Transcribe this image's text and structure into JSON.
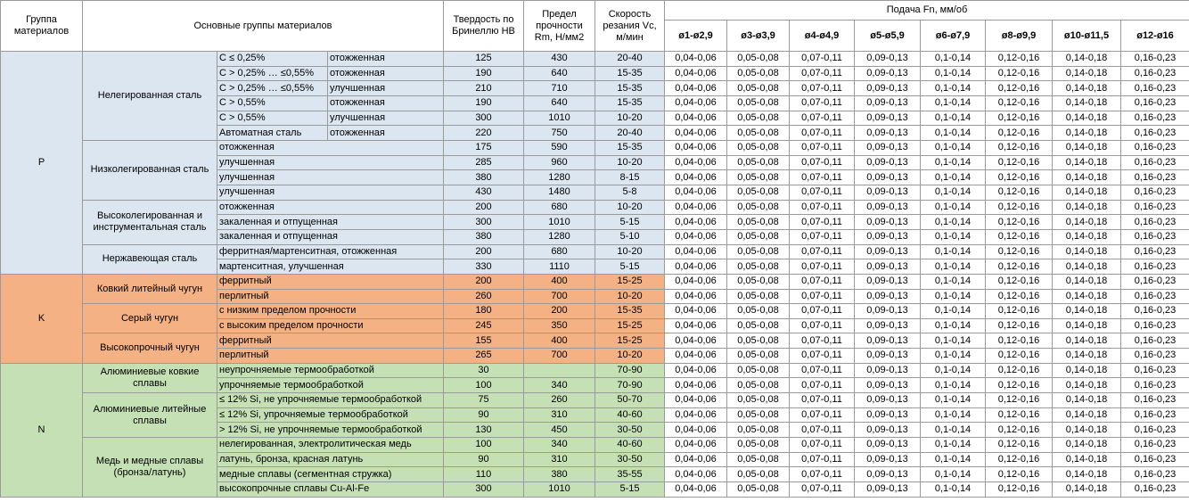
{
  "header": {
    "group": "Группа материалов",
    "main_groups": "Основные группы материалов",
    "hardness": "Твердость по Бринеллю HB",
    "strength": "Предел прочности Rm, Н/мм2",
    "speed": "Скорость резания Vc, м/мин",
    "feed": "Подача Fn, мм/об",
    "diameters": [
      "ø1-ø2,9",
      "ø3-ø3,9",
      "ø4-ø4,9",
      "ø5-ø5,9",
      "ø6-ø7,9",
      "ø8-ø9,9",
      "ø10-ø11,5",
      "ø12-ø16"
    ]
  },
  "groups": [
    {
      "name": "P",
      "subgroups": [
        {
          "name": "Нелегированная сталь",
          "rows": [
            {
              "material": [
                "C ≤ 0,25%",
                "отожженная"
              ],
              "hb": "125",
              "rm": "430",
              "vc": "20-40",
              "feed": [
                "0,04-0,06",
                "0,05-0,08",
                "0,07-0,11",
                "0,09-0,13",
                "0,1-0,14",
                "0,12-0,16",
                "0,14-0,18",
                "0,16-0,23"
              ]
            },
            {
              "material": [
                "C > 0,25% … ≤0,55%",
                "отожженная"
              ],
              "hb": "190",
              "rm": "640",
              "vc": "15-35",
              "feed": [
                "0,04-0,06",
                "0,05-0,08",
                "0,07-0,11",
                "0,09-0,13",
                "0,1-0,14",
                "0,12-0,16",
                "0,14-0,18",
                "0,16-0,23"
              ]
            },
            {
              "material": [
                "C > 0,25% … ≤0,55%",
                "улучшенная"
              ],
              "hb": "210",
              "rm": "710",
              "vc": "15-35",
              "feed": [
                "0,04-0,06",
                "0,05-0,08",
                "0,07-0,11",
                "0,09-0,13",
                "0,1-0,14",
                "0,12-0,16",
                "0,14-0,18",
                "0,16-0,23"
              ]
            },
            {
              "material": [
                "C > 0,55%",
                "отожженная"
              ],
              "hb": "190",
              "rm": "640",
              "vc": "15-35",
              "feed": [
                "0,04-0,06",
                "0,05-0,08",
                "0,07-0,11",
                "0,09-0,13",
                "0,1-0,14",
                "0,12-0,16",
                "0,14-0,18",
                "0,16-0,23"
              ]
            },
            {
              "material": [
                "C > 0,55%",
                "улучшенная"
              ],
              "hb": "300",
              "rm": "1010",
              "vc": "10-20",
              "feed": [
                "0,04-0,06",
                "0,05-0,08",
                "0,07-0,11",
                "0,09-0,13",
                "0,1-0,14",
                "0,12-0,16",
                "0,14-0,18",
                "0,16-0,23"
              ]
            },
            {
              "material": [
                "Автоматная сталь",
                "отожженная"
              ],
              "hb": "220",
              "rm": "750",
              "vc": "20-40",
              "feed": [
                "0,04-0,06",
                "0,05-0,08",
                "0,07-0,11",
                "0,09-0,13",
                "0,1-0,14",
                "0,12-0,16",
                "0,14-0,18",
                "0,16-0,23"
              ]
            }
          ]
        },
        {
          "name": "Низколегированная сталь",
          "rows": [
            {
              "material": [
                "отожженная"
              ],
              "hb": "175",
              "rm": "590",
              "vc": "15-35",
              "feed": [
                "0,04-0,06",
                "0,05-0,08",
                "0,07-0,11",
                "0,09-0,13",
                "0,1-0,14",
                "0,12-0,16",
                "0,14-0,18",
                "0,16-0,23"
              ]
            },
            {
              "material": [
                "улучшенная"
              ],
              "hb": "285",
              "rm": "960",
              "vc": "10-20",
              "feed": [
                "0,04-0,06",
                "0,05-0,08",
                "0,07-0,11",
                "0,09-0,13",
                "0,1-0,14",
                "0,12-0,16",
                "0,14-0,18",
                "0,16-0,23"
              ]
            },
            {
              "material": [
                "улучшенная"
              ],
              "hb": "380",
              "rm": "1280",
              "vc": "8-15",
              "feed": [
                "0,04-0,06",
                "0,05-0,08",
                "0,07-0,11",
                "0,09-0,13",
                "0,1-0,14",
                "0,12-0,16",
                "0,14-0,18",
                "0,16-0,23"
              ]
            },
            {
              "material": [
                "улучшенная"
              ],
              "hb": "430",
              "rm": "1480",
              "vc": "5-8",
              "feed": [
                "0,04-0,06",
                "0,05-0,08",
                "0,07-0,11",
                "0,09-0,13",
                "0,1-0,14",
                "0,12-0,16",
                "0,14-0,18",
                "0,16-0,23"
              ]
            }
          ]
        },
        {
          "name": "Высоколегированная и инструментальная сталь",
          "rows": [
            {
              "material": [
                "отожженная"
              ],
              "hb": "200",
              "rm": "680",
              "vc": "10-20",
              "feed": [
                "0,04-0,06",
                "0,05-0,08",
                "0,07-0,11",
                "0,09-0,13",
                "0,1-0,14",
                "0,12-0,16",
                "0,14-0,18",
                "0,16-0,23"
              ]
            },
            {
              "material": [
                "закаленная и отпущенная"
              ],
              "hb": "300",
              "rm": "1010",
              "vc": "5-15",
              "feed": [
                "0,04-0,06",
                "0,05-0,08",
                "0,07-0,11",
                "0,09-0,13",
                "0,1-0,14",
                "0,12-0,16",
                "0,14-0,18",
                "0,16-0,23"
              ]
            },
            {
              "material": [
                "закаленная и отпущенная"
              ],
              "hb": "380",
              "rm": "1280",
              "vc": "5-10",
              "feed": [
                "0,04-0,06",
                "0,05-0,08",
                "0,07-0,11",
                "0,09-0,13",
                "0,1-0,14",
                "0,12-0,16",
                "0,14-0,18",
                "0,16-0,23"
              ]
            }
          ]
        },
        {
          "name": "Нержавеющая сталь",
          "rows": [
            {
              "material": [
                "ферритная/мартенситная, отожженная"
              ],
              "hb": "200",
              "rm": "680",
              "vc": "10-20",
              "feed": [
                "0,04-0,06",
                "0,05-0,08",
                "0,07-0,11",
                "0,09-0,13",
                "0,1-0,14",
                "0,12-0,16",
                "0,14-0,18",
                "0,16-0,23"
              ]
            },
            {
              "material": [
                "мартенситная, улучшенная"
              ],
              "hb": "330",
              "rm": "1110",
              "vc": "5-15",
              "feed": [
                "0,04-0,06",
                "0,05-0,08",
                "0,07-0,11",
                "0,09-0,13",
                "0,1-0,14",
                "0,12-0,16",
                "0,14-0,18",
                "0,16-0,23"
              ]
            }
          ]
        }
      ]
    },
    {
      "name": "K",
      "subgroups": [
        {
          "name": "Ковкий литейный чугун",
          "rows": [
            {
              "material": [
                "ферритный"
              ],
              "hb": "200",
              "rm": "400",
              "vc": "15-25",
              "feed": [
                "0,04-0,06",
                "0,05-0,08",
                "0,07-0,11",
                "0,09-0,13",
                "0,1-0,14",
                "0,12-0,16",
                "0,14-0,18",
                "0,16-0,23"
              ]
            },
            {
              "material": [
                "перлитный"
              ],
              "hb": "260",
              "rm": "700",
              "vc": "10-20",
              "feed": [
                "0,04-0,06",
                "0,05-0,08",
                "0,07-0,11",
                "0,09-0,13",
                "0,1-0,14",
                "0,12-0,16",
                "0,14-0,18",
                "0,16-0,23"
              ]
            }
          ]
        },
        {
          "name": "Серый чугун",
          "rows": [
            {
              "material": [
                "с низким пределом прочности"
              ],
              "hb": "180",
              "rm": "200",
              "vc": "15-35",
              "feed": [
                "0,04-0,06",
                "0,05-0,08",
                "0,07-0,11",
                "0,09-0,13",
                "0,1-0,14",
                "0,12-0,16",
                "0,14-0,18",
                "0,16-0,23"
              ]
            },
            {
              "material": [
                "с высоким пределом прочности"
              ],
              "hb": "245",
              "rm": "350",
              "vc": "15-25",
              "feed": [
                "0,04-0,06",
                "0,05-0,08",
                "0,07-0,11",
                "0,09-0,13",
                "0,1-0,14",
                "0,12-0,16",
                "0,14-0,18",
                "0,16-0,23"
              ]
            }
          ]
        },
        {
          "name": "Высокопрочный чугун",
          "rows": [
            {
              "material": [
                "ферритный"
              ],
              "hb": "155",
              "rm": "400",
              "vc": "15-25",
              "feed": [
                "0,04-0,06",
                "0,05-0,08",
                "0,07-0,11",
                "0,09-0,13",
                "0,1-0,14",
                "0,12-0,16",
                "0,14-0,18",
                "0,16-0,23"
              ]
            },
            {
              "material": [
                "перлитный"
              ],
              "hb": "265",
              "rm": "700",
              "vc": "10-20",
              "feed": [
                "0,04-0,06",
                "0,05-0,08",
                "0,07-0,11",
                "0,09-0,13",
                "0,1-0,14",
                "0,12-0,16",
                "0,14-0,18",
                "0,16-0,23"
              ]
            }
          ]
        }
      ]
    },
    {
      "name": "N",
      "subgroups": [
        {
          "name": "Алюминиевые ковкие сплавы",
          "rows": [
            {
              "material": [
                "неупрочняемые термообработкой"
              ],
              "hb": "30",
              "vc": "70-90",
              "feed": [
                "0,04-0,06",
                "0,05-0,08",
                "0,07-0,11",
                "0,09-0,13",
                "0,1-0,14",
                "0,12-0,16",
                "0,14-0,18",
                "0,16-0,23"
              ]
            },
            {
              "material": [
                "упрочняемые термообработкой"
              ],
              "hb": "100",
              "rm": "340",
              "vc": "70-90",
              "feed": [
                "0,04-0,06",
                "0,05-0,08",
                "0,07-0,11",
                "0,09-0,13",
                "0,1-0,14",
                "0,12-0,16",
                "0,14-0,18",
                "0,16-0,23"
              ]
            }
          ]
        },
        {
          "name": "Алюминиевые литейные сплавы",
          "rows": [
            {
              "material": [
                "≤ 12% Si, не упрочняемые термообработкой"
              ],
              "hb": "75",
              "rm": "260",
              "vc": "50-70",
              "feed": [
                "0,04-0,06",
                "0,05-0,08",
                "0,07-0,11",
                "0,09-0,13",
                "0,1-0,14",
                "0,12-0,16",
                "0,14-0,18",
                "0,16-0,23"
              ]
            },
            {
              "material": [
                "≤ 12% Si, упрочняемые термообработкой"
              ],
              "hb": "90",
              "rm": "310",
              "vc": "40-60",
              "feed": [
                "0,04-0,06",
                "0,05-0,08",
                "0,07-0,11",
                "0,09-0,13",
                "0,1-0,14",
                "0,12-0,16",
                "0,14-0,18",
                "0,16-0,23"
              ]
            },
            {
              "material": [
                "> 12% Si, не упрочняемые термообработкой"
              ],
              "hb": "130",
              "rm": "450",
              "vc": "30-50",
              "feed": [
                "0,04-0,06",
                "0,05-0,08",
                "0,07-0,11",
                "0,09-0,13",
                "0,1-0,14",
                "0,12-0,16",
                "0,14-0,18",
                "0,16-0,23"
              ]
            }
          ]
        },
        {
          "name": "Медь и медные сплавы (бронза/латунь)",
          "rows": [
            {
              "material": [
                "нелегированная, электролитическая медь"
              ],
              "hb": "100",
              "rm": "340",
              "vc": "40-60",
              "feed": [
                "0,04-0,06",
                "0,05-0,08",
                "0,07-0,11",
                "0,09-0,13",
                "0,1-0,14",
                "0,12-0,16",
                "0,14-0,18",
                "0,16-0,23"
              ]
            },
            {
              "material": [
                "латунь, бронза, красная латунь"
              ],
              "hb": "90",
              "rm": "310",
              "vc": "30-50",
              "feed": [
                "0,04-0,06",
                "0,05-0,08",
                "0,07-0,11",
                "0,09-0,13",
                "0,1-0,14",
                "0,12-0,16",
                "0,14-0,18",
                "0,16-0,23"
              ]
            },
            {
              "material": [
                "медные сплавы (сегментная стружка)"
              ],
              "hb": "110",
              "rm": "380",
              "vc": "35-55",
              "feed": [
                "0,04-0,06",
                "0,05-0,08",
                "0,07-0,11",
                "0,09-0,13",
                "0,1-0,14",
                "0,12-0,16",
                "0,14-0,18",
                "0,16-0,23"
              ]
            },
            {
              "material": [
                "высокопрочные сплавы Cu-Al-Fe"
              ],
              "hb": "300",
              "rm": "1010",
              "vc": "5-15",
              "feed": [
                "0,04-0,06",
                "0,05-0,08",
                "0,07-0,11",
                "0,09-0,13",
                "0,1-0,14",
                "0,12-0,16",
                "0,14-0,18",
                "0,16-0,23"
              ]
            }
          ]
        }
      ]
    }
  ]
}
